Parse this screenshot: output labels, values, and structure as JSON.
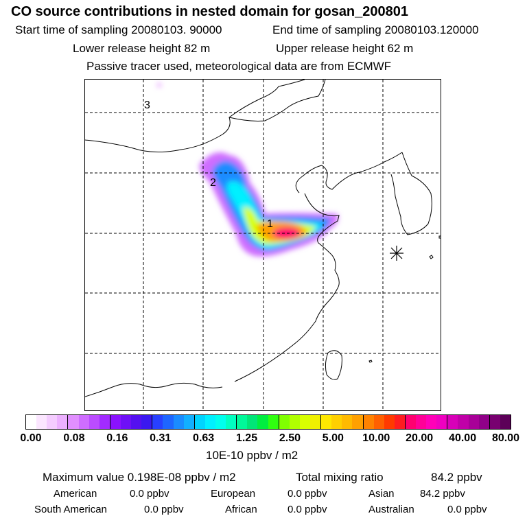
{
  "header": {
    "title": "CO  source contributions in nested domain for gosan_200801",
    "start_time": "Start time of sampling 20080103. 90000",
    "end_time": "End time of sampling 20080103.120000",
    "lower_height": "Lower release height   82 m",
    "upper_height": "Upper release height   62 m",
    "tracer_note": "Passive tracer used, meteorological data are from ECMWF"
  },
  "map": {
    "markers": [
      "1",
      "2",
      "3"
    ],
    "receptor_symbol": "asterisk-icon"
  },
  "colorbar": {
    "ticks": [
      "0.00",
      "0.08",
      "0.16",
      "0.31",
      "0.63",
      "1.25",
      "2.50",
      "5.00",
      "10.00",
      "20.00",
      "40.00",
      "80.00"
    ],
    "unit": "10E-10 ppbv / m2",
    "colors": [
      "#ffffff",
      "#fbe6ff",
      "#f4ccff",
      "#ecb0ff",
      "#e18fff",
      "#cf6dff",
      "#bb4cff",
      "#a22bff",
      "#8a12ff",
      "#6e10f6",
      "#5410f0",
      "#3a18f0",
      "#2840ff",
      "#1e66ff",
      "#1a8cff",
      "#12b0ff",
      "#00d4ff",
      "#00f0ff",
      "#00ffee",
      "#00ffc0",
      "#00f89a",
      "#00e678",
      "#00ee40",
      "#30ff10",
      "#80ff00",
      "#b0ff00",
      "#d8ff00",
      "#f0f000",
      "#ffe800",
      "#ffd000",
      "#ffba00",
      "#ffa000",
      "#ff8200",
      "#ff6000",
      "#ff3a00",
      "#ff1c20",
      "#ff0070",
      "#ff0098",
      "#ff00b8",
      "#ef00c0",
      "#d800b8",
      "#c000a8",
      "#a80098",
      "#900088",
      "#780070",
      "#5c0058"
    ]
  },
  "stats": {
    "max_label": "Maximum value  0.198E-08 ppbv / m2",
    "total_label": "Total mixing ratio",
    "total_value": "84.2 ppbv",
    "american_label": "American",
    "american_value": "0.0 ppbv",
    "european_label": "European",
    "european_value": "0.0 ppbv",
    "asian_label": "Asian",
    "asian_value": "84.2 ppbv",
    "south_american_label": "South American",
    "south_american_value": "0.0 ppbv",
    "african_label": "African",
    "african_value": "0.0 ppbv",
    "australian_label": "Australian",
    "australian_value": "0.0 ppbv"
  }
}
